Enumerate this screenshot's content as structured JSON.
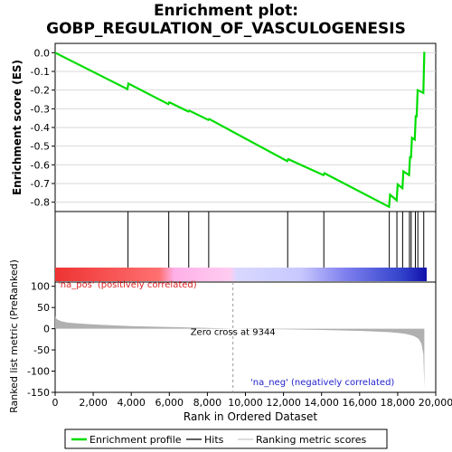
{
  "title_line1": "Enrichment plot:",
  "title_line2": "GOBP_REGULATION_OF_VASCULOGENESIS",
  "colors": {
    "es_line": "#00dd00",
    "hit": "#000000",
    "metric_fill": "#b0b0b0",
    "pos_label": "#dd2222",
    "neg_label": "#2222cc",
    "zero_cross_line": "#999999"
  },
  "chart_data": [
    {
      "type": "line",
      "ylabel": "Enrichment score (ES)",
      "xlim": [
        0,
        20000
      ],
      "ylim": [
        -0.85,
        0.05
      ],
      "yticks": [
        0.0,
        -0.1,
        -0.2,
        -0.3,
        -0.4,
        -0.5,
        -0.6,
        -0.7,
        -0.8
      ],
      "ytick_labels": [
        "0.0",
        "-0.1",
        "-0.2",
        "-0.3",
        "-0.4",
        "-0.5",
        "-0.6",
        "-0.7",
        "-0.8"
      ],
      "grid": true,
      "series": [
        {
          "name": "Enrichment profile",
          "x": [
            0,
            3800,
            3850,
            5950,
            6000,
            7000,
            7050,
            8050,
            8100,
            12200,
            12250,
            14100,
            14150,
            17550,
            17600,
            17950,
            18000,
            18250,
            18300,
            18600,
            18650,
            18700,
            18750,
            18900,
            18950,
            19000,
            19050,
            19350,
            19400
          ],
          "y": [
            0.0,
            -0.195,
            -0.165,
            -0.275,
            -0.265,
            -0.315,
            -0.31,
            -0.36,
            -0.355,
            -0.58,
            -0.57,
            -0.655,
            -0.645,
            -0.825,
            -0.76,
            -0.79,
            -0.705,
            -0.725,
            -0.635,
            -0.655,
            -0.555,
            -0.565,
            -0.455,
            -0.465,
            -0.335,
            -0.345,
            -0.2,
            -0.215,
            0.005
          ]
        }
      ]
    },
    {
      "type": "hits",
      "xlim": [
        0,
        20000
      ],
      "hits": [
        3830,
        5970,
        7020,
        8070,
        12220,
        14120,
        17560,
        17960,
        18260,
        18620,
        18710,
        18930,
        19060,
        19370
      ]
    },
    {
      "type": "area",
      "xlabel": "Rank in Ordered Dataset",
      "ylabel": "Ranked list metric (PreRanked)",
      "xlim": [
        0,
        20000
      ],
      "ylim": [
        -150,
        110
      ],
      "xticks": [
        0,
        2000,
        4000,
        6000,
        8000,
        10000,
        12000,
        14000,
        16000,
        18000,
        20000
      ],
      "xtick_labels": [
        "0",
        "2,000",
        "4,000",
        "6,000",
        "8,000",
        "10,000",
        "12,000",
        "14,000",
        "16,000",
        "18,000",
        "20,000"
      ],
      "yticks": [
        100,
        50,
        0,
        -50,
        -100,
        -150
      ],
      "ytick_labels": [
        "100",
        "50",
        "0",
        "-50",
        "-100",
        "-150"
      ],
      "series": [
        {
          "name": "Ranking metric scores",
          "x": [
            0,
            20,
            100,
            300,
            600,
            1000,
            2000,
            3000,
            4000,
            5000,
            6000,
            7000,
            8000,
            9344,
            10000,
            11000,
            12000,
            13000,
            14000,
            15000,
            16000,
            17000,
            17500,
            18000,
            18400,
            18700,
            18900,
            19100,
            19250,
            19350,
            19400
          ],
          "y": [
            30,
            27,
            22,
            18,
            15,
            13,
            10,
            8,
            6,
            5,
            4,
            3,
            2,
            0,
            -0.5,
            -1,
            -1.5,
            -2,
            -3,
            -4,
            -5,
            -7,
            -8,
            -10,
            -12,
            -15,
            -18,
            -24,
            -35,
            -60,
            -140
          ]
        }
      ],
      "annotations": {
        "zero_cross": "Zero cross at 9344",
        "pos": "'na_pos' (positively correlated)",
        "neg": "'na_neg' (negatively correlated)"
      }
    }
  ],
  "legend": {
    "items": [
      {
        "label": "Enrichment profile",
        "color": "#00dd00"
      },
      {
        "label": "Hits",
        "color": "#000000"
      },
      {
        "label": "Ranking metric scores",
        "color": "#c8c8c8"
      }
    ]
  }
}
